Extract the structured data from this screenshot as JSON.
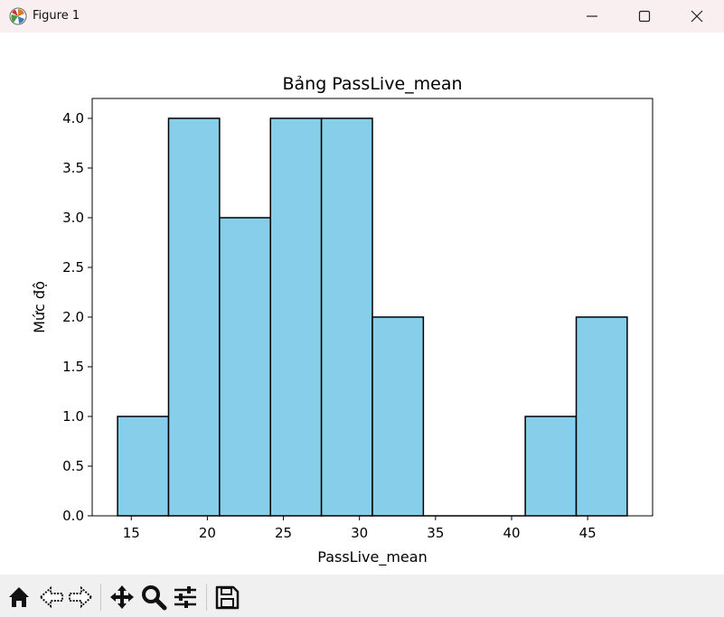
{
  "window": {
    "title": "Figure 1"
  },
  "toolbar": {
    "tools": [
      "home-icon",
      "back-icon",
      "forward-icon",
      "pan-icon",
      "zoom-icon",
      "configure-subplots-icon",
      "save-icon"
    ]
  },
  "chart_data": {
    "type": "bar",
    "title": "Bảng PassLive_mean",
    "xlabel": "PassLive_mean",
    "ylabel": "Mức độ",
    "bins": [
      {
        "x0": 14.1,
        "x1": 17.45,
        "count": 1
      },
      {
        "x0": 17.45,
        "x1": 20.8,
        "count": 4
      },
      {
        "x0": 20.8,
        "x1": 24.15,
        "count": 3
      },
      {
        "x0": 24.15,
        "x1": 27.5,
        "count": 4
      },
      {
        "x0": 27.5,
        "x1": 30.85,
        "count": 4
      },
      {
        "x0": 30.85,
        "x1": 34.2,
        "count": 2
      },
      {
        "x0": 34.2,
        "x1": 37.55,
        "count": 0
      },
      {
        "x0": 37.55,
        "x1": 40.9,
        "count": 0
      },
      {
        "x0": 40.9,
        "x1": 44.25,
        "count": 1
      },
      {
        "x0": 44.25,
        "x1": 47.6,
        "count": 2
      }
    ],
    "xticks": [
      15,
      20,
      25,
      30,
      35,
      40,
      45
    ],
    "xtick_labels": [
      "15",
      "20",
      "25",
      "30",
      "35",
      "40",
      "45"
    ],
    "yticks": [
      0,
      0.5,
      1,
      1.5,
      2,
      2.5,
      3,
      3.5,
      4
    ],
    "ytick_labels": [
      "0.0",
      "0.5",
      "1.0",
      "1.5",
      "2.0",
      "2.5",
      "3.0",
      "3.5",
      "4.0"
    ],
    "xlim": [
      12.43,
      49.27
    ],
    "ylim": [
      0,
      4.2
    ],
    "bar_color": "#87ceeb",
    "edge_color": "#000000",
    "grid": false
  }
}
